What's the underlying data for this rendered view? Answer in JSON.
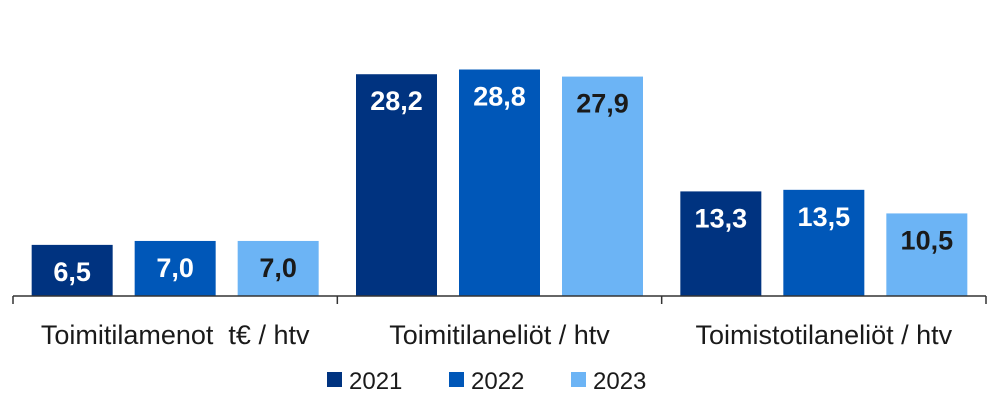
{
  "chart_data": {
    "type": "bar",
    "categories": [
      "Toimitilamenot  t€ / htv",
      "Toimitilaneliöt / htv",
      "Toimistotilaneliöt / htv"
    ],
    "series": [
      {
        "name": "2021",
        "values": [
          "6,5",
          "28,2",
          "13,3"
        ],
        "color": "#003380",
        "label_color": "#ffffff"
      },
      {
        "name": "2022",
        "values": [
          "7,0",
          "28,8",
          "13,5"
        ],
        "color": "#0057B8",
        "label_color": "#ffffff"
      },
      {
        "name": "2023",
        "values": [
          "7,0",
          "27,9",
          "10,5"
        ],
        "color": "#6CB4F5",
        "label_color": "#1a1a1a"
      }
    ],
    "ylim": [
      0,
      29.5
    ],
    "legend_position": "bottom-center",
    "grid": false
  }
}
